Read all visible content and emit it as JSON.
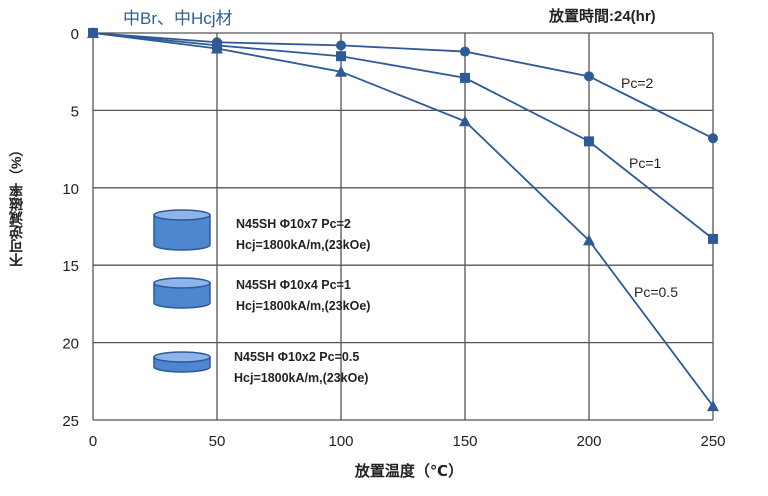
{
  "header": {
    "title_left": "中Br、中Hcj材",
    "title_right": "放置時間:24(hr)"
  },
  "axes": {
    "ylabel": "不可逆減磁率（%）",
    "xlabel": "放置温度（℃）",
    "x_ticks": [
      "0",
      "50",
      "100",
      "150",
      "200",
      "250"
    ],
    "y_ticks": [
      "0",
      "5",
      "10",
      "15",
      "20",
      "25"
    ]
  },
  "legend": [
    {
      "line1": "N45SH Φ10x7 Pc=2",
      "line2": "Hcj=1800kA/m,(23kOe)",
      "icon": "tall-cylinder-icon"
    },
    {
      "line1": "N45SH Φ10x4 Pc=1",
      "line2": "Hcj=1800kA/m,(23kOe)",
      "icon": "medium-cylinder-icon"
    },
    {
      "line1": "N45SH Φ10x2 Pc=0.5",
      "line2": "Hcj=1800kA/m,(23kOe)",
      "icon": "flat-cylinder-icon"
    }
  ],
  "curve_labels": {
    "pc2": "Pc=2",
    "pc1": "Pc=1",
    "pc05": "Pc=0.5"
  },
  "colors": {
    "series": "#2e5a95",
    "cylinder_fill": "#4f86d0",
    "cylinder_top": "#8fb5e8",
    "grid": "#555555"
  },
  "chart_data": {
    "type": "line",
    "title": "中Br、中Hcj材",
    "subtitle": "放置時間:24(hr)",
    "xlabel": "放置温度（℃）",
    "ylabel": "不可逆減磁率（%）",
    "x": [
      0,
      50,
      100,
      150,
      200,
      250
    ],
    "xlim": [
      0,
      250
    ],
    "ylim": [
      0,
      25
    ],
    "y_inverted": true,
    "grid": true,
    "series": [
      {
        "name": "N45SH Φ10x7 Pc=2",
        "marker": "circle",
        "values": [
          0,
          0.6,
          0.8,
          1.2,
          2.8,
          6.8
        ]
      },
      {
        "name": "N45SH Φ10x4 Pc=1",
        "marker": "square",
        "values": [
          0,
          0.8,
          1.5,
          2.9,
          7.0,
          13.3
        ]
      },
      {
        "name": "N45SH Φ10x2 Pc=0.5",
        "marker": "triangle",
        "values": [
          0,
          1.0,
          2.5,
          5.7,
          13.4,
          24.1
        ]
      }
    ],
    "annotations": [
      "Pc=2",
      "Pc=1",
      "Pc=0.5",
      "Hcj=1800kA/m,(23kOe)"
    ]
  }
}
